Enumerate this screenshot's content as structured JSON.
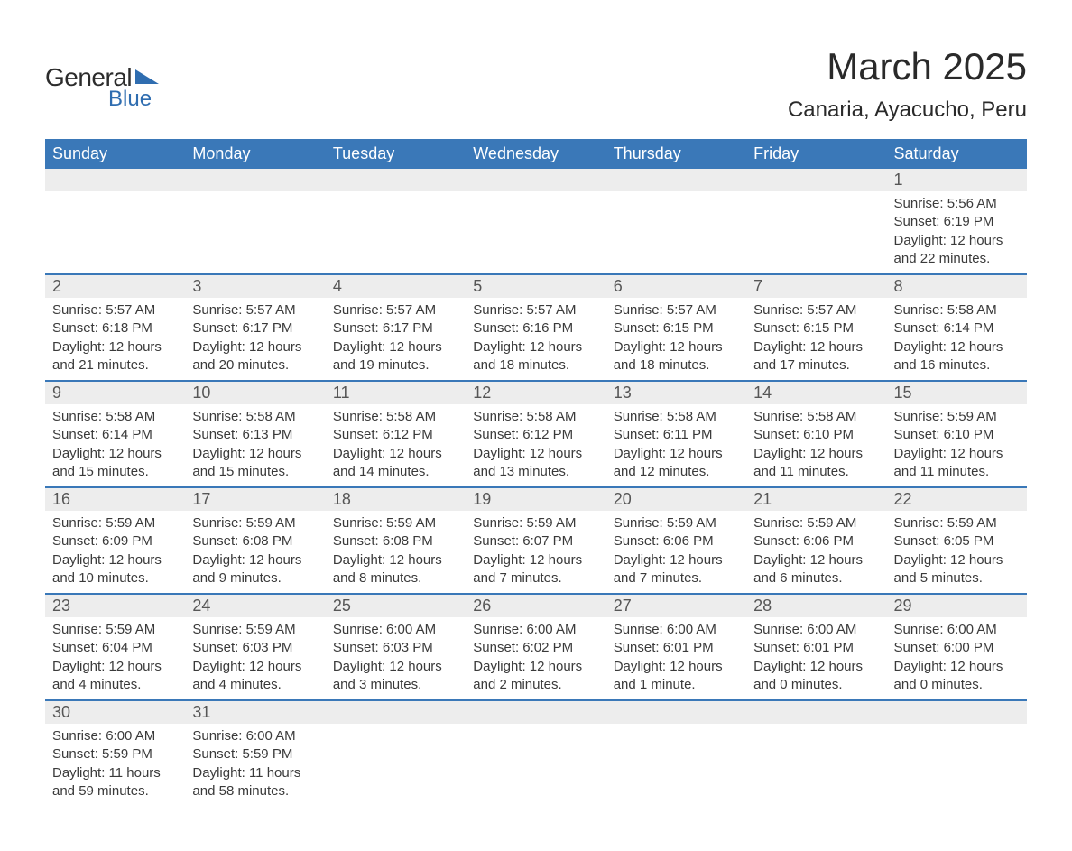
{
  "logo": {
    "word1": "General",
    "word2": "Blue",
    "brand_color": "#2f6db0"
  },
  "title": "March 2025",
  "location": "Canaria, Ayacucho, Peru",
  "header_bg": "#3a78b8",
  "header_fg": "#ffffff",
  "daynum_bg": "#ededed",
  "daynum_fg": "#565656",
  "body_fg": "#3a3a3a",
  "row_divider": "#3a78b8",
  "font_family": "Arial",
  "title_fontsize": 42,
  "location_fontsize": 24,
  "header_fontsize": 18,
  "daynum_fontsize": 18,
  "cell_fontsize": 15,
  "day_names": [
    "Sunday",
    "Monday",
    "Tuesday",
    "Wednesday",
    "Thursday",
    "Friday",
    "Saturday"
  ],
  "weeks": [
    [
      null,
      null,
      null,
      null,
      null,
      null,
      {
        "n": "1",
        "sunrise": "Sunrise: 5:56 AM",
        "sunset": "Sunset: 6:19 PM",
        "daylight": "Daylight: 12 hours and 22 minutes."
      }
    ],
    [
      {
        "n": "2",
        "sunrise": "Sunrise: 5:57 AM",
        "sunset": "Sunset: 6:18 PM",
        "daylight": "Daylight: 12 hours and 21 minutes."
      },
      {
        "n": "3",
        "sunrise": "Sunrise: 5:57 AM",
        "sunset": "Sunset: 6:17 PM",
        "daylight": "Daylight: 12 hours and 20 minutes."
      },
      {
        "n": "4",
        "sunrise": "Sunrise: 5:57 AM",
        "sunset": "Sunset: 6:17 PM",
        "daylight": "Daylight: 12 hours and 19 minutes."
      },
      {
        "n": "5",
        "sunrise": "Sunrise: 5:57 AM",
        "sunset": "Sunset: 6:16 PM",
        "daylight": "Daylight: 12 hours and 18 minutes."
      },
      {
        "n": "6",
        "sunrise": "Sunrise: 5:57 AM",
        "sunset": "Sunset: 6:15 PM",
        "daylight": "Daylight: 12 hours and 18 minutes."
      },
      {
        "n": "7",
        "sunrise": "Sunrise: 5:57 AM",
        "sunset": "Sunset: 6:15 PM",
        "daylight": "Daylight: 12 hours and 17 minutes."
      },
      {
        "n": "8",
        "sunrise": "Sunrise: 5:58 AM",
        "sunset": "Sunset: 6:14 PM",
        "daylight": "Daylight: 12 hours and 16 minutes."
      }
    ],
    [
      {
        "n": "9",
        "sunrise": "Sunrise: 5:58 AM",
        "sunset": "Sunset: 6:14 PM",
        "daylight": "Daylight: 12 hours and 15 minutes."
      },
      {
        "n": "10",
        "sunrise": "Sunrise: 5:58 AM",
        "sunset": "Sunset: 6:13 PM",
        "daylight": "Daylight: 12 hours and 15 minutes."
      },
      {
        "n": "11",
        "sunrise": "Sunrise: 5:58 AM",
        "sunset": "Sunset: 6:12 PM",
        "daylight": "Daylight: 12 hours and 14 minutes."
      },
      {
        "n": "12",
        "sunrise": "Sunrise: 5:58 AM",
        "sunset": "Sunset: 6:12 PM",
        "daylight": "Daylight: 12 hours and 13 minutes."
      },
      {
        "n": "13",
        "sunrise": "Sunrise: 5:58 AM",
        "sunset": "Sunset: 6:11 PM",
        "daylight": "Daylight: 12 hours and 12 minutes."
      },
      {
        "n": "14",
        "sunrise": "Sunrise: 5:58 AM",
        "sunset": "Sunset: 6:10 PM",
        "daylight": "Daylight: 12 hours and 11 minutes."
      },
      {
        "n": "15",
        "sunrise": "Sunrise: 5:59 AM",
        "sunset": "Sunset: 6:10 PM",
        "daylight": "Daylight: 12 hours and 11 minutes."
      }
    ],
    [
      {
        "n": "16",
        "sunrise": "Sunrise: 5:59 AM",
        "sunset": "Sunset: 6:09 PM",
        "daylight": "Daylight: 12 hours and 10 minutes."
      },
      {
        "n": "17",
        "sunrise": "Sunrise: 5:59 AM",
        "sunset": "Sunset: 6:08 PM",
        "daylight": "Daylight: 12 hours and 9 minutes."
      },
      {
        "n": "18",
        "sunrise": "Sunrise: 5:59 AM",
        "sunset": "Sunset: 6:08 PM",
        "daylight": "Daylight: 12 hours and 8 minutes."
      },
      {
        "n": "19",
        "sunrise": "Sunrise: 5:59 AM",
        "sunset": "Sunset: 6:07 PM",
        "daylight": "Daylight: 12 hours and 7 minutes."
      },
      {
        "n": "20",
        "sunrise": "Sunrise: 5:59 AM",
        "sunset": "Sunset: 6:06 PM",
        "daylight": "Daylight: 12 hours and 7 minutes."
      },
      {
        "n": "21",
        "sunrise": "Sunrise: 5:59 AM",
        "sunset": "Sunset: 6:06 PM",
        "daylight": "Daylight: 12 hours and 6 minutes."
      },
      {
        "n": "22",
        "sunrise": "Sunrise: 5:59 AM",
        "sunset": "Sunset: 6:05 PM",
        "daylight": "Daylight: 12 hours and 5 minutes."
      }
    ],
    [
      {
        "n": "23",
        "sunrise": "Sunrise: 5:59 AM",
        "sunset": "Sunset: 6:04 PM",
        "daylight": "Daylight: 12 hours and 4 minutes."
      },
      {
        "n": "24",
        "sunrise": "Sunrise: 5:59 AM",
        "sunset": "Sunset: 6:03 PM",
        "daylight": "Daylight: 12 hours and 4 minutes."
      },
      {
        "n": "25",
        "sunrise": "Sunrise: 6:00 AM",
        "sunset": "Sunset: 6:03 PM",
        "daylight": "Daylight: 12 hours and 3 minutes."
      },
      {
        "n": "26",
        "sunrise": "Sunrise: 6:00 AM",
        "sunset": "Sunset: 6:02 PM",
        "daylight": "Daylight: 12 hours and 2 minutes."
      },
      {
        "n": "27",
        "sunrise": "Sunrise: 6:00 AM",
        "sunset": "Sunset: 6:01 PM",
        "daylight": "Daylight: 12 hours and 1 minute."
      },
      {
        "n": "28",
        "sunrise": "Sunrise: 6:00 AM",
        "sunset": "Sunset: 6:01 PM",
        "daylight": "Daylight: 12 hours and 0 minutes."
      },
      {
        "n": "29",
        "sunrise": "Sunrise: 6:00 AM",
        "sunset": "Sunset: 6:00 PM",
        "daylight": "Daylight: 12 hours and 0 minutes."
      }
    ],
    [
      {
        "n": "30",
        "sunrise": "Sunrise: 6:00 AM",
        "sunset": "Sunset: 5:59 PM",
        "daylight": "Daylight: 11 hours and 59 minutes."
      },
      {
        "n": "31",
        "sunrise": "Sunrise: 6:00 AM",
        "sunset": "Sunset: 5:59 PM",
        "daylight": "Daylight: 11 hours and 58 minutes."
      },
      null,
      null,
      null,
      null,
      null
    ]
  ]
}
